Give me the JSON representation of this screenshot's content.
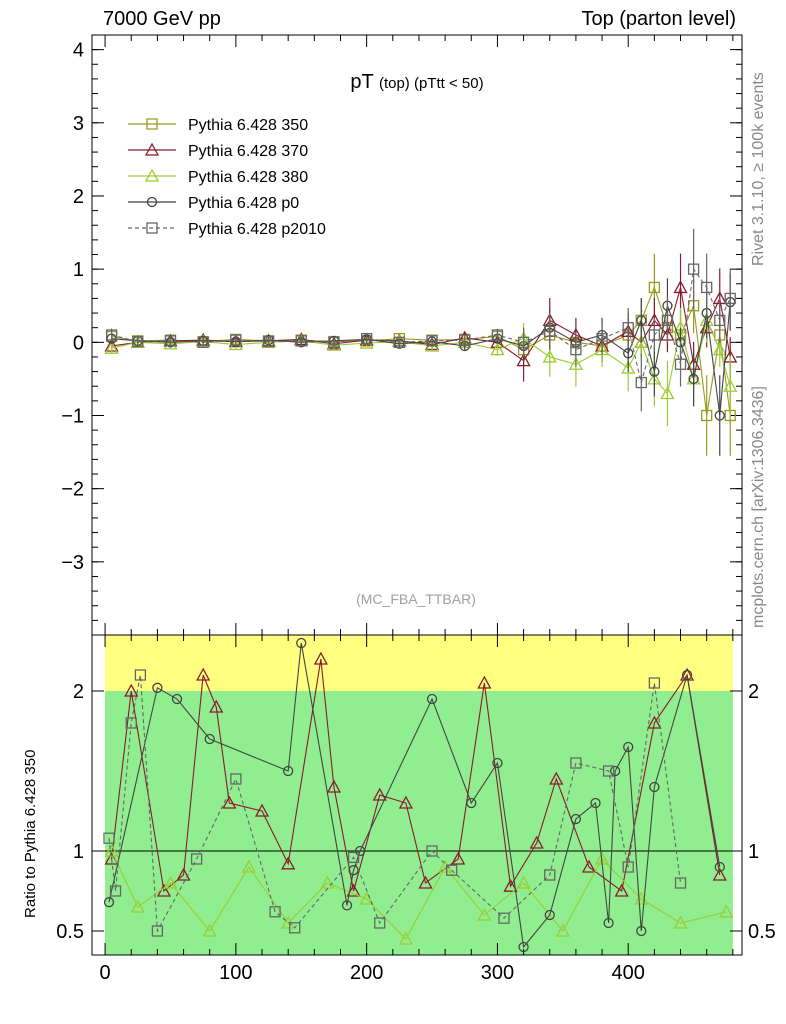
{
  "header": {
    "left": "7000 GeV pp",
    "right": "Top (parton level)"
  },
  "side_labels": {
    "rivet": "Rivet 3.1.10, ≥ 100k events",
    "source": "mcplots.cern.ch [arXiv:1306.3436]"
  },
  "chart_data": [
    {
      "type": "scatter",
      "panel": "main",
      "title_main": "pT",
      "title_sub": "(top)",
      "title_cut": "(pTtt < 50)",
      "watermark": "(MC_FBA_TTBAR)",
      "xlim": [
        -10,
        487
      ],
      "ylim": [
        -4,
        4.2
      ],
      "yticks": [
        -3,
        -2,
        -1,
        0,
        1,
        2,
        3,
        4
      ],
      "xticks": [
        0,
        100,
        200,
        300,
        400
      ],
      "legend_position": "top-left",
      "colors": {
        "Pythia 6.428 350": "#9a9a1e",
        "Pythia 6.428 370": "#8b1a2b",
        "Pythia 6.428 380": "#9acd32",
        "Pythia 6.428 p0": "#444444",
        "Pythia 6.428 p2010": "#666666"
      },
      "series": [
        {
          "name": "Pythia 6.428 350",
          "marker": "square",
          "line": "solid",
          "x": [
            5,
            25,
            50,
            75,
            100,
            125,
            150,
            175,
            200,
            225,
            250,
            275,
            300,
            320,
            340,
            360,
            380,
            400,
            410,
            420,
            430,
            440,
            450,
            460,
            470,
            478
          ],
          "y": [
            0.08,
            0.02,
            0.03,
            0.01,
            0.04,
            0.02,
            0.03,
            0.01,
            0.02,
            0.05,
            0.03,
            0.04,
            0.08,
            -0.1,
            0.1,
            0.0,
            -0.05,
            0.1,
            0.3,
            0.75,
            0.2,
            0.1,
            0.5,
            -1.0,
            0.1,
            -1.0
          ]
        },
        {
          "name": "Pythia 6.428 370",
          "marker": "triangle",
          "line": "solid",
          "x": [
            5,
            25,
            50,
            75,
            100,
            125,
            150,
            175,
            200,
            225,
            250,
            275,
            300,
            320,
            340,
            360,
            380,
            400,
            410,
            420,
            430,
            440,
            450,
            460,
            470,
            478
          ],
          "y": [
            -0.05,
            0.0,
            0.02,
            0.03,
            0.01,
            0.02,
            0.04,
            -0.02,
            0.03,
            0.02,
            -0.03,
            0.06,
            0.0,
            -0.25,
            0.3,
            0.1,
            -0.05,
            0.15,
            0.0,
            0.3,
            0.1,
            0.75,
            -0.3,
            0.2,
            0.6,
            -0.2
          ]
        },
        {
          "name": "Pythia 6.428 380",
          "marker": "triangle",
          "line": "solid",
          "x": [
            5,
            25,
            50,
            75,
            100,
            125,
            150,
            175,
            200,
            225,
            250,
            275,
            300,
            320,
            340,
            360,
            380,
            400,
            410,
            420,
            430,
            440,
            450,
            460,
            470,
            478
          ],
          "y": [
            -0.08,
            0.0,
            -0.02,
            0.01,
            -0.03,
            0.0,
            0.02,
            -0.04,
            -0.01,
            0.01,
            -0.05,
            0.0,
            -0.1,
            0.05,
            -0.2,
            -0.3,
            -0.1,
            -0.35,
            0.0,
            -0.5,
            -0.7,
            0.2,
            -0.5,
            0.3,
            -0.1,
            -0.6
          ]
        },
        {
          "name": "Pythia 6.428 p0",
          "marker": "circle",
          "line": "solid",
          "x": [
            5,
            25,
            50,
            75,
            100,
            125,
            150,
            175,
            200,
            225,
            250,
            275,
            300,
            320,
            340,
            360,
            380,
            400,
            410,
            420,
            430,
            440,
            450,
            460,
            470,
            478
          ],
          "y": [
            0.05,
            0.02,
            0.0,
            0.02,
            0.01,
            0.03,
            0.0,
            0.02,
            0.04,
            -0.02,
            0.01,
            -0.05,
            0.05,
            -0.05,
            0.2,
            0.0,
            0.1,
            -0.15,
            0.3,
            -0.4,
            0.5,
            0.0,
            -0.5,
            0.4,
            -1.0,
            0.55
          ]
        },
        {
          "name": "Pythia 6.428 p2010",
          "marker": "square",
          "line": "dashed",
          "x": [
            5,
            25,
            50,
            75,
            100,
            125,
            150,
            175,
            200,
            225,
            250,
            275,
            300,
            320,
            340,
            360,
            380,
            400,
            410,
            420,
            430,
            440,
            450,
            460,
            470,
            478
          ],
          "y": [
            0.1,
            0.01,
            0.02,
            0.0,
            0.03,
            0.01,
            0.02,
            0.0,
            0.05,
            0.0,
            0.02,
            0.03,
            0.1,
            0.0,
            0.15,
            -0.1,
            0.05,
            0.2,
            -0.55,
            0.1,
            0.3,
            -0.3,
            1.0,
            0.75,
            0.3,
            0.6
          ]
        }
      ]
    },
    {
      "type": "line",
      "panel": "ratio",
      "ylabel": "Ratio to Pythia 6.428 350",
      "xlim": [
        -10,
        487
      ],
      "ylim": [
        0.35,
        2.35
      ],
      "yticks": [
        0.5,
        1,
        2
      ],
      "xticks": [
        0,
        100,
        200,
        300,
        400
      ],
      "reference_line": 1,
      "bands": [
        {
          "name": "outer",
          "color": "#ffff80",
          "x_from": 0,
          "x_to": 480,
          "lower": 0.35,
          "upper": 2.35
        },
        {
          "name": "inner",
          "color": "#90ee90",
          "x_from": 0,
          "x_to": 480,
          "lower": 0.35,
          "upper": 2.0
        }
      ],
      "series": [
        {
          "name": "Pythia 6.428 370",
          "marker": "triangle",
          "line": "solid",
          "x": [
            5,
            20,
            45,
            60,
            75,
            85,
            95,
            120,
            140,
            165,
            175,
            190,
            210,
            230,
            245,
            270,
            290,
            310,
            330,
            345,
            370,
            395,
            420,
            445,
            470
          ],
          "y": [
            0.95,
            2.0,
            0.75,
            0.85,
            2.1,
            1.9,
            1.3,
            1.25,
            0.92,
            2.2,
            1.4,
            0.75,
            1.35,
            1.3,
            0.8,
            0.95,
            2.05,
            0.78,
            1.05,
            1.45,
            0.9,
            0.75,
            1.8,
            2.1,
            0.85
          ]
        },
        {
          "name": "Pythia 6.428 380",
          "marker": "triangle",
          "line": "solid",
          "x": [
            5,
            25,
            50,
            80,
            110,
            140,
            170,
            200,
            230,
            260,
            290,
            320,
            350,
            380,
            410,
            440,
            475
          ],
          "y": [
            1.0,
            0.65,
            0.8,
            0.5,
            0.9,
            0.55,
            0.8,
            0.7,
            0.45,
            0.9,
            0.6,
            0.8,
            0.5,
            0.95,
            0.7,
            0.55,
            0.62
          ]
        },
        {
          "name": "Pythia 6.428 p0",
          "marker": "circle",
          "line": "solid",
          "x": [
            3,
            40,
            55,
            80,
            140,
            150,
            185,
            190,
            195,
            250,
            280,
            300,
            320,
            340,
            360,
            375,
            385,
            390,
            400,
            410,
            420,
            445,
            470
          ],
          "y": [
            0.68,
            2.02,
            1.95,
            1.7,
            1.5,
            2.3,
            0.66,
            0.88,
            1.0,
            1.95,
            1.3,
            1.55,
            0.4,
            0.6,
            1.2,
            1.3,
            0.55,
            1.5,
            1.65,
            0.5,
            1.4,
            2.1,
            0.9
          ]
        },
        {
          "name": "Pythia 6.428 p2010",
          "marker": "square",
          "line": "dashed",
          "x": [
            3,
            8,
            20,
            27,
            40,
            70,
            100,
            130,
            145,
            190,
            210,
            250,
            265,
            305,
            340,
            360,
            385,
            400,
            420,
            440
          ],
          "y": [
            1.08,
            0.75,
            1.8,
            2.1,
            0.5,
            0.95,
            1.45,
            0.62,
            0.52,
            0.96,
            0.55,
            1.0,
            0.88,
            0.58,
            0.85,
            1.55,
            1.5,
            0.9,
            2.05,
            0.8
          ]
        }
      ]
    }
  ]
}
